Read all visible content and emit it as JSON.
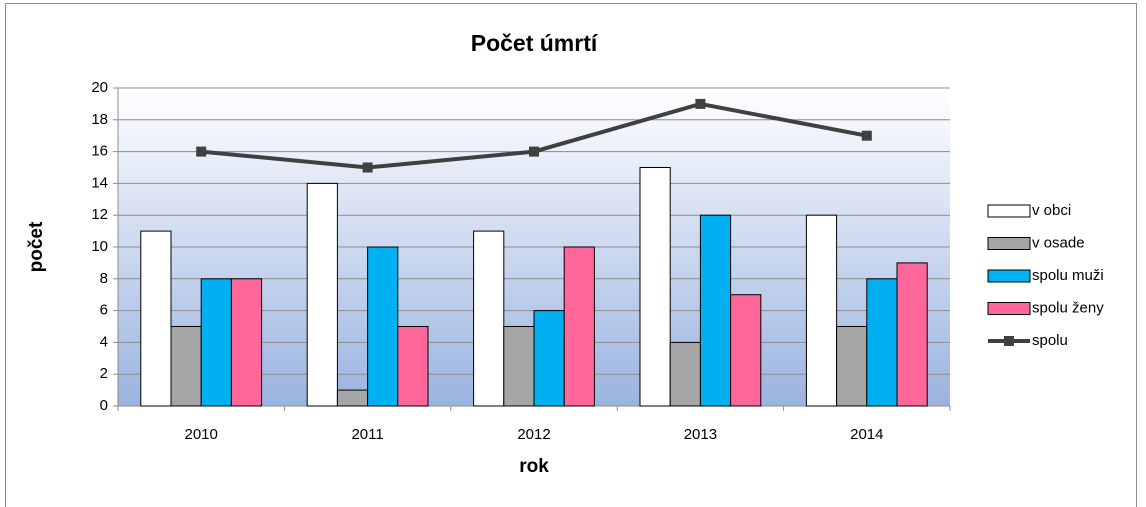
{
  "chart_data": {
    "type": "bar",
    "title": "Počet úmrtí",
    "x_label": "rok",
    "y_label": "počet",
    "categories": [
      "2010",
      "2011",
      "2012",
      "2013",
      "2014"
    ],
    "series": [
      {
        "name": "v obci",
        "color": "#ffffff",
        "values": [
          11,
          14,
          11,
          15,
          12
        ]
      },
      {
        "name": "v osade",
        "color": "#a6a6a6",
        "values": [
          5,
          1,
          5,
          4,
          5
        ]
      },
      {
        "name": "spolu muži",
        "color": "#00b0f0",
        "values": [
          8,
          10,
          6,
          12,
          8
        ]
      },
      {
        "name": "spolu ženy",
        "color": "#ff6699",
        "values": [
          8,
          5,
          10,
          7,
          9
        ]
      },
      {
        "name": "spolu",
        "color": "#404040",
        "type": "line",
        "values": [
          16,
          15,
          16,
          19,
          17
        ]
      }
    ],
    "ylim": [
      0,
      20
    ],
    "yticks": [
      0,
      2,
      4,
      6,
      8,
      10,
      12,
      14,
      16,
      18,
      20
    ],
    "grid": true,
    "legend": "right"
  }
}
